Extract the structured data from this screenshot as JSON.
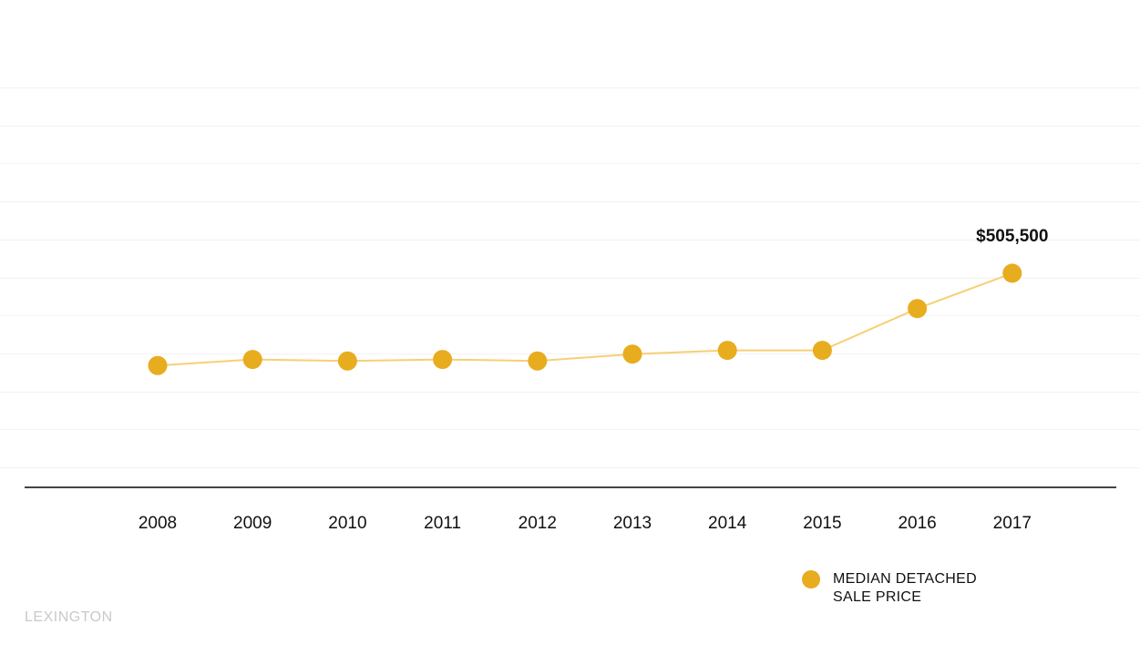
{
  "chart_data": {
    "type": "line",
    "title": "",
    "xlabel": "",
    "ylabel": "",
    "categories": [
      "2008",
      "2009",
      "2010",
      "2011",
      "2012",
      "2013",
      "2014",
      "2015",
      "2016",
      "2017"
    ],
    "series": [
      {
        "name": "MEDIAN DETACHED SALE PRICE",
        "values": [
          384000,
          392000,
          390000,
          392000,
          390000,
          399000,
          404000,
          404000,
          459000,
          505500
        ],
        "color": "#e8ac1f",
        "line_color": "#f7cf74"
      }
    ],
    "annotations": [
      {
        "category": "2017",
        "text": "$505,500"
      }
    ],
    "ylim": [
      250000,
      750000
    ],
    "grid": true,
    "y_tick_labels_shown": false,
    "legend_position": "bottom-right"
  },
  "legend": {
    "label_line1": "MEDIAN DETACHED",
    "label_line2": "SALE PRICE"
  },
  "region_label": "LEXINGTON",
  "colors": {
    "marker": "#e8ac1f",
    "line": "#f7cf74",
    "gridline": "#f3f3f3",
    "axis": "#444444",
    "region_label": "#c9c9c9"
  }
}
